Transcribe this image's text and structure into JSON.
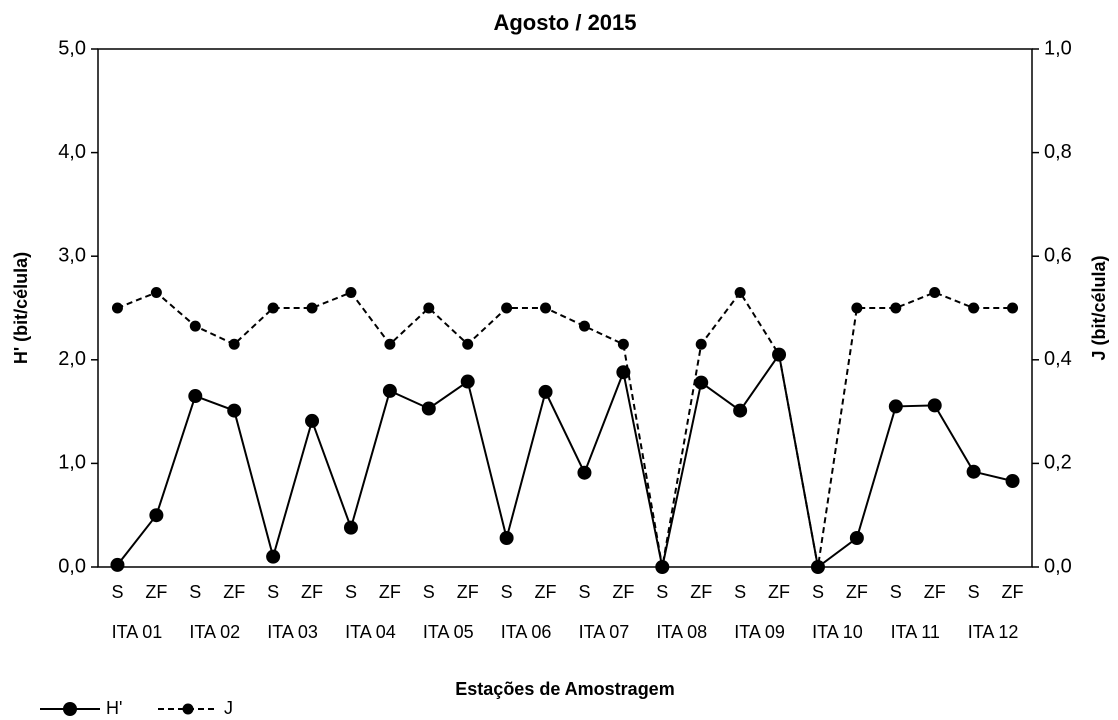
{
  "chart_data": {
    "type": "line",
    "title": "Agosto / 2015",
    "x_label": "Estações de Amostragem",
    "y_label": "H' (bit/célula)",
    "y2_label": "J (bit/célula)",
    "categories": [
      "S",
      "ZF",
      "S",
      "ZF",
      "S",
      "ZF",
      "S",
      "ZF",
      "S",
      "ZF",
      "S",
      "ZF",
      "S",
      "ZF",
      "S",
      "ZF",
      "S",
      "ZF",
      "S",
      "ZF",
      "S",
      "ZF",
      "S",
      "ZF"
    ],
    "groups": [
      "ITA 01",
      "ITA 02",
      "ITA 03",
      "ITA 04",
      "ITA 05",
      "ITA 06",
      "ITA 07",
      "ITA 08",
      "ITA 09",
      "ITA 10",
      "ITA 11",
      "ITA 12"
    ],
    "series": [
      {
        "name": "H'",
        "color": "#000000",
        "line_style": "solid",
        "values": [
          0.02,
          0.5,
          1.65,
          1.51,
          0.1,
          1.41,
          0.38,
          1.7,
          1.53,
          1.79,
          0.28,
          1.69,
          0.91,
          1.88,
          0,
          1.78,
          1.51,
          2.05,
          0,
          0.28,
          1.55,
          1.56,
          0.92,
          0.83
        ]
      },
      {
        "name": "J",
        "color": "#000000",
        "line_style": "dashed",
        "axis": "y2",
        "values": [
          0.5,
          0.53,
          0.465,
          0.43,
          0.5,
          0.5,
          0.53,
          0.43,
          0.5,
          0.43,
          0.5,
          0.5,
          0.465,
          0.43,
          0,
          0.43,
          0.53,
          0.41,
          0,
          0.5,
          0.5,
          0.53,
          0.5,
          0.5
        ]
      }
    ],
    "ylim": [
      0,
      5
    ],
    "yticks": [
      {
        "value": 0,
        "label": "0,0"
      },
      {
        "value": 1,
        "label": "1,0"
      },
      {
        "value": 2,
        "label": "2,0"
      },
      {
        "value": 3,
        "label": "3,0"
      },
      {
        "value": 4,
        "label": "4,0"
      },
      {
        "value": 5,
        "label": "5,0"
      }
    ],
    "y2lim": [
      0,
      1
    ],
    "y2ticks": [
      {
        "value": 0,
        "label": "0,0"
      },
      {
        "value": 0.2,
        "label": "0,2"
      },
      {
        "value": 0.4,
        "label": "0,4"
      },
      {
        "value": 0.6,
        "label": "0,6"
      },
      {
        "value": 0.8,
        "label": "0,8"
      },
      {
        "value": 1,
        "label": "1,0"
      }
    ],
    "grid": false,
    "legend": "bottom-left"
  }
}
